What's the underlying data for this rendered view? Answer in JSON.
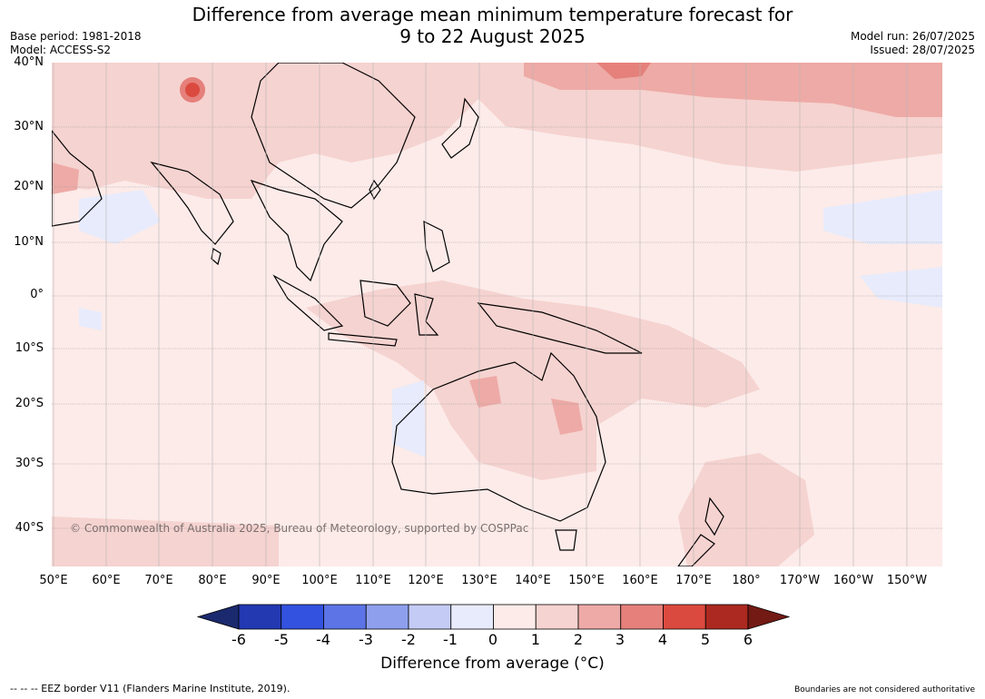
{
  "title_line1": "Difference from average mean minimum temperature forecast for",
  "title_line2": "9 to 22 August 2025",
  "base_period": "Base period: 1981-2018",
  "model": "Model: ACCESS-S2",
  "model_run": "Model run: 26/07/2025",
  "issued": "Issued: 28/07/2025",
  "lat_labels": [
    "40°N",
    "30°N",
    "20°N",
    "10°N",
    "0°",
    "10°S",
    "20°S",
    "30°S",
    "40°S"
  ],
  "lon_labels": [
    "50°E",
    "60°E",
    "70°E",
    "80°E",
    "90°E",
    "100°E",
    "110°E",
    "120°E",
    "130°E",
    "140°E",
    "150°E",
    "160°E",
    "170°E",
    "180°",
    "170°W",
    "160°W",
    "150°W"
  ],
  "copyright": "© Commonwealth of Australia 2025, Bureau of Meteorology, supported by COSPPac",
  "colorbar": {
    "ticks": [
      "-6",
      "-5",
      "-4",
      "-3",
      "-2",
      "-1",
      "0",
      "1",
      "2",
      "3",
      "4",
      "5",
      "6"
    ],
    "colors": [
      "#1b2a6e",
      "#2339b2",
      "#3352e0",
      "#5c74e6",
      "#8e9fee",
      "#c4ccf6",
      "#e8ebfb",
      "#fcebe9",
      "#f5d3d0",
      "#eeaaa6",
      "#e5807b",
      "#db4a3f",
      "#ac2921",
      "#731a14"
    ],
    "label": "Difference from average (°C)"
  },
  "footer_left": "--  --  -- EEZ border V11 (Flanders Marine Institute, 2019).",
  "footer_right": "Boundaries are not considered authoritative"
}
